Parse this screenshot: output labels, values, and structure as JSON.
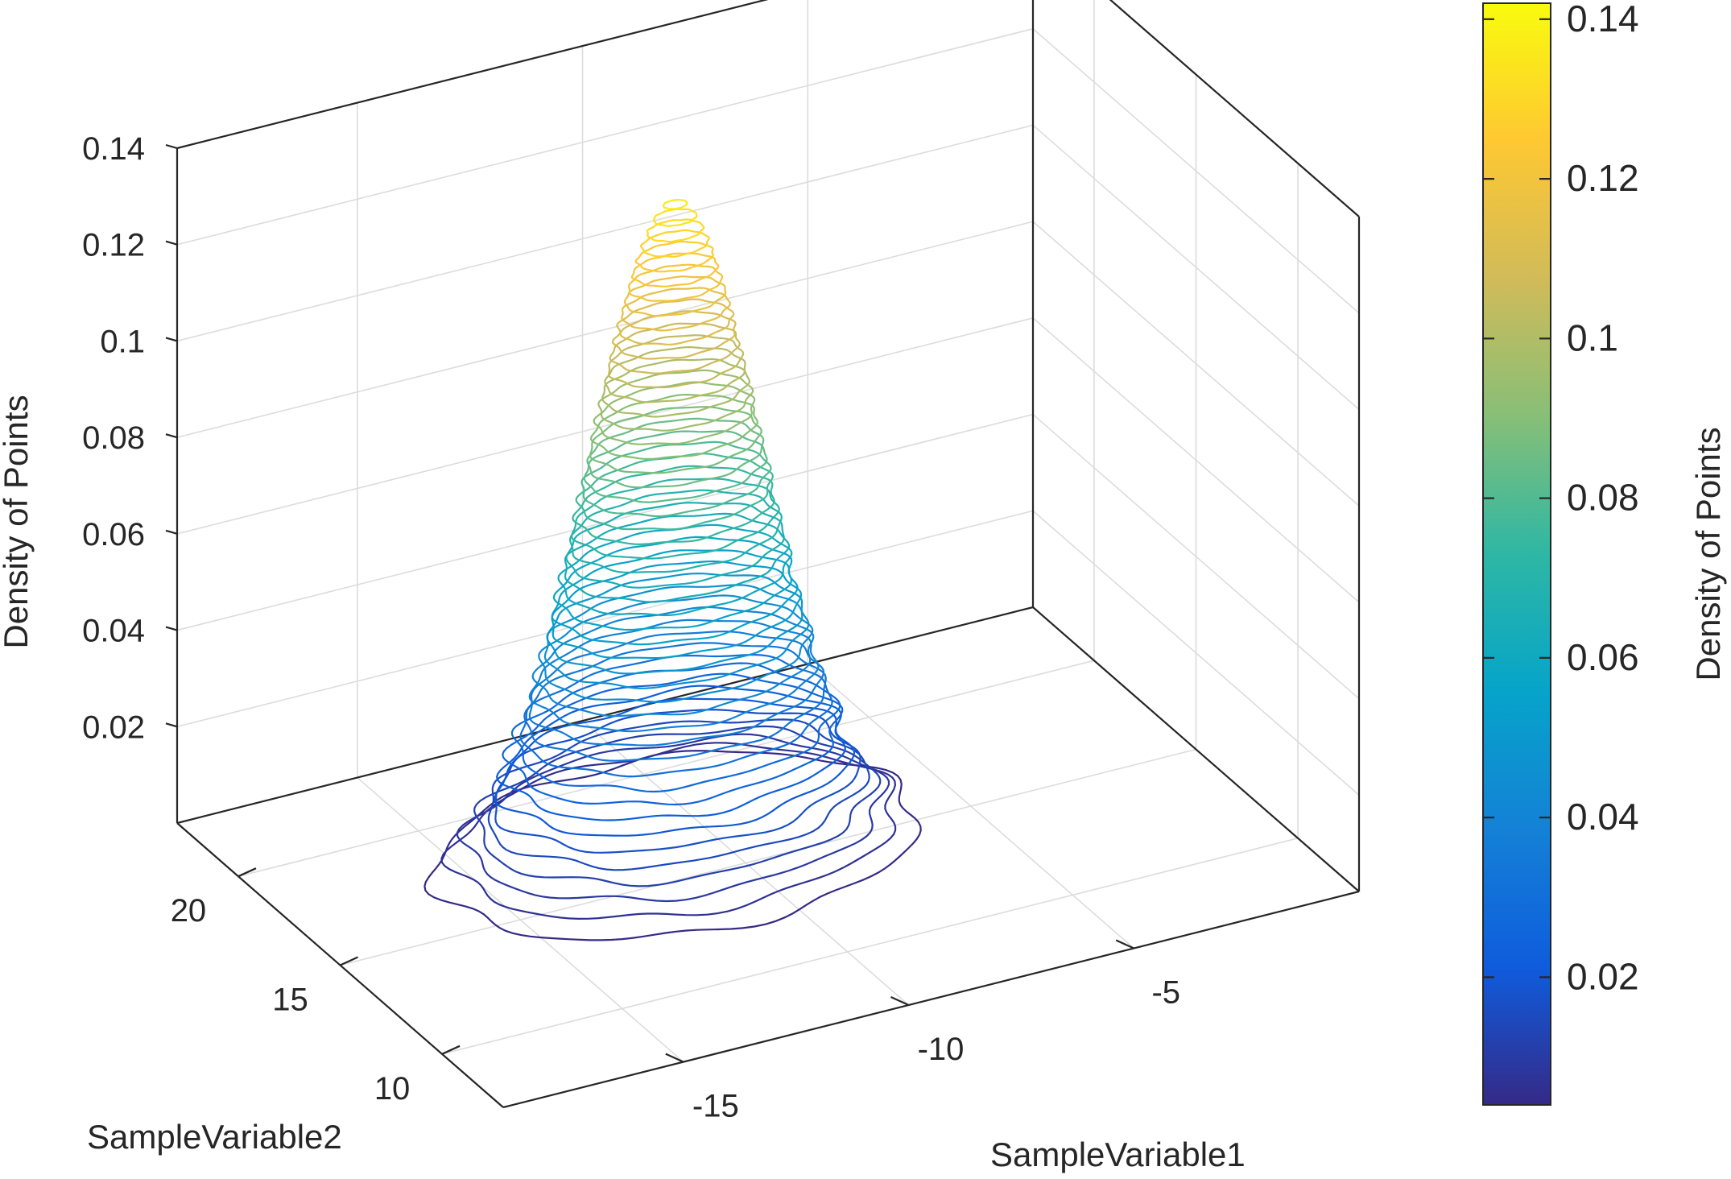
{
  "chart_data": {
    "type": "contour3",
    "zlabel": "Density of Points",
    "xlabel": "SampleVariable1",
    "ylabel": "SampleVariable2",
    "colorbar_label": "Density of Points",
    "xlim": [
      -19,
      0
    ],
    "ylim": [
      7,
      23
    ],
    "zlim": [
      0,
      0.14
    ],
    "x_ticks": [
      "-15",
      "-10",
      "-5"
    ],
    "x_tick_values": [
      -15,
      -10,
      -5
    ],
    "y_ticks": [
      "10",
      "15",
      "20"
    ],
    "y_tick_values": [
      10,
      15,
      20
    ],
    "z_ticks": [
      "0.02",
      "0.04",
      "0.06",
      "0.08",
      "0.1",
      "0.12",
      "0.14"
    ],
    "z_tick_values": [
      0.02,
      0.04,
      0.06,
      0.08,
      0.1,
      0.12,
      0.14
    ],
    "colorbar_ticks": [
      "0.02",
      "0.04",
      "0.06",
      "0.08",
      "0.1",
      "0.12",
      "0.14"
    ],
    "colorbar_tick_values": [
      0.02,
      0.04,
      0.06,
      0.08,
      0.1,
      0.12,
      0.14
    ],
    "colorbar_range": [
      0.004,
      0.142
    ],
    "peak_center": {
      "x": -11.2,
      "y": 15.8
    },
    "contour_levels": {
      "min": 0.0035,
      "max": 0.1365,
      "count": 50
    },
    "grid": true,
    "colormap": "parula"
  },
  "colors": {
    "axis": "#262626",
    "grid": "#dcdcdc",
    "parula_stops": [
      "#352a87",
      "#0f5cdd",
      "#1481d6",
      "#06a4ca",
      "#2eb7a4",
      "#87bf77",
      "#d1bb59",
      "#fec832",
      "#f9fb0e"
    ]
  }
}
